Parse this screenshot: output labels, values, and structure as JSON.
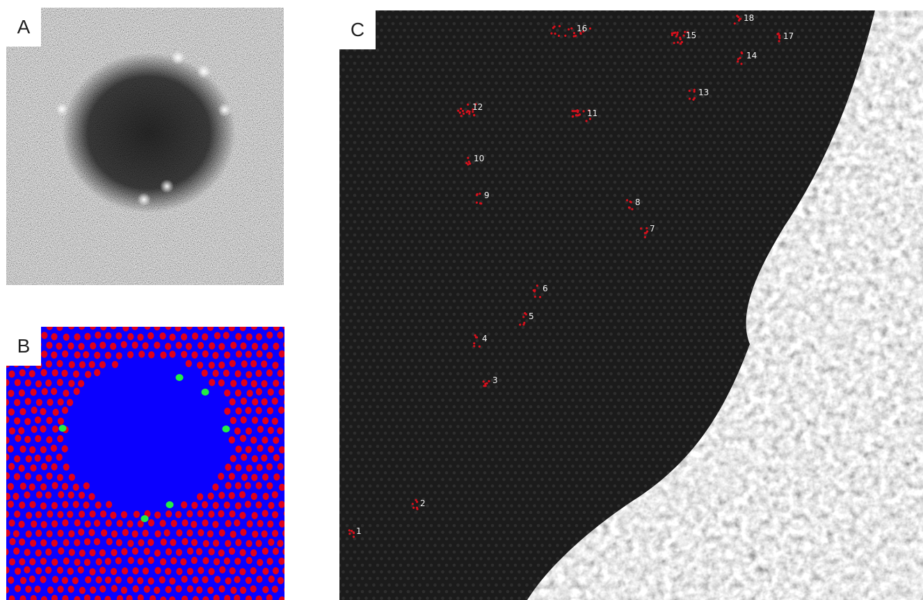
{
  "panels": {
    "a": {
      "label": "A"
    },
    "b": {
      "label": "B"
    },
    "c": {
      "label": "C"
    }
  },
  "colors": {
    "background_b": "#0a00ff",
    "lattice_dot": "#e0001a",
    "dopant_dot": "#22ee44",
    "marker": "#d8101c",
    "label_text": "#f4f4f4"
  },
  "site_labels": [
    "1",
    "2",
    "3",
    "4",
    "5",
    "6",
    "7",
    "8",
    "9",
    "10",
    "11",
    "12",
    "13",
    "14",
    "15",
    "16",
    "17",
    "18"
  ]
}
